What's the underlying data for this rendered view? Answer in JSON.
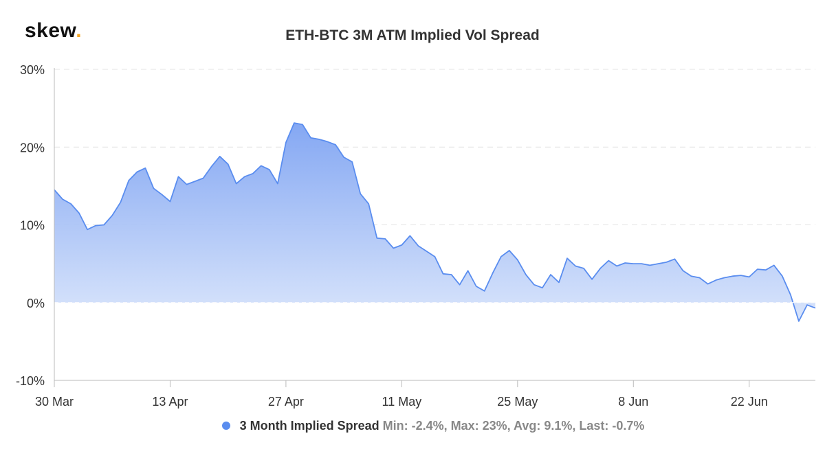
{
  "brand": {
    "name": "skew",
    "dot": "."
  },
  "chart_data": {
    "type": "area",
    "title": "ETH-BTC 3M ATM Implied Vol Spread",
    "xlabel": "",
    "ylabel": "",
    "x_ticks": [
      "30 Mar",
      "13 Apr",
      "27 Apr",
      "11 May",
      "25 May",
      "8 Jun",
      "22 Jun"
    ],
    "y_ticks": [
      "30%",
      "20%",
      "10%",
      "0%",
      "-10%"
    ],
    "ylim": [
      -10,
      30
    ],
    "x_range": [
      "2020-03-30",
      "2020-06-30"
    ],
    "grid": "horizontal-dashed",
    "legend_position": "bottom-center",
    "series": [
      {
        "name": "3 Month Implied Spread",
        "color": "#5a8def",
        "stats": "Min: -2.4%, Max: 23%, Avg: 9.1%, Last: -0.7%",
        "x": [
          "2020-03-30",
          "2020-03-31",
          "2020-04-01",
          "2020-04-02",
          "2020-04-03",
          "2020-04-04",
          "2020-04-05",
          "2020-04-06",
          "2020-04-07",
          "2020-04-08",
          "2020-04-09",
          "2020-04-10",
          "2020-04-11",
          "2020-04-12",
          "2020-04-13",
          "2020-04-14",
          "2020-04-15",
          "2020-04-16",
          "2020-04-17",
          "2020-04-18",
          "2020-04-19",
          "2020-04-20",
          "2020-04-21",
          "2020-04-22",
          "2020-04-23",
          "2020-04-24",
          "2020-04-25",
          "2020-04-26",
          "2020-04-27",
          "2020-04-28",
          "2020-04-29",
          "2020-04-30",
          "2020-05-01",
          "2020-05-02",
          "2020-05-03",
          "2020-05-04",
          "2020-05-05",
          "2020-05-06",
          "2020-05-07",
          "2020-05-08",
          "2020-05-09",
          "2020-05-10",
          "2020-05-11",
          "2020-05-12",
          "2020-05-13",
          "2020-05-14",
          "2020-05-15",
          "2020-05-16",
          "2020-05-17",
          "2020-05-18",
          "2020-05-19",
          "2020-05-20",
          "2020-05-21",
          "2020-05-22",
          "2020-05-23",
          "2020-05-24",
          "2020-05-25",
          "2020-05-26",
          "2020-05-27",
          "2020-05-28",
          "2020-05-29",
          "2020-05-30",
          "2020-05-31",
          "2020-06-01",
          "2020-06-02",
          "2020-06-03",
          "2020-06-04",
          "2020-06-05",
          "2020-06-06",
          "2020-06-07",
          "2020-06-08",
          "2020-06-09",
          "2020-06-10",
          "2020-06-11",
          "2020-06-12",
          "2020-06-13",
          "2020-06-14",
          "2020-06-15",
          "2020-06-16",
          "2020-06-17",
          "2020-06-18",
          "2020-06-19",
          "2020-06-20",
          "2020-06-21",
          "2020-06-22",
          "2020-06-23",
          "2020-06-24",
          "2020-06-25",
          "2020-06-26",
          "2020-06-27",
          "2020-06-28",
          "2020-06-29",
          "2020-06-30"
        ],
        "values": [
          14.5,
          13.3,
          12.7,
          11.5,
          9.4,
          9.9,
          10.0,
          11.2,
          12.9,
          15.7,
          16.8,
          17.3,
          14.7,
          13.9,
          13.0,
          16.2,
          15.2,
          15.6,
          16.0,
          17.5,
          18.8,
          17.8,
          15.3,
          16.2,
          16.6,
          17.6,
          17.1,
          15.3,
          20.6,
          23.1,
          22.9,
          21.2,
          21.0,
          20.7,
          20.3,
          18.7,
          18.1,
          14.0,
          12.7,
          8.3,
          8.2,
          7.0,
          7.4,
          8.6,
          7.3,
          6.6,
          5.9,
          3.7,
          3.6,
          2.3,
          4.1,
          2.1,
          1.5,
          3.8,
          5.9,
          6.7,
          5.5,
          3.6,
          2.3,
          1.9,
          3.6,
          2.6,
          5.7,
          4.7,
          4.4,
          3.0,
          4.4,
          5.4,
          4.7,
          5.1,
          5.0,
          5.0,
          4.8,
          5.0,
          5.2,
          5.6,
          4.1,
          3.4,
          3.2,
          2.4,
          2.9,
          3.2,
          3.4,
          3.5,
          3.3,
          4.3,
          4.2,
          4.8,
          3.4,
          1.0,
          -2.4,
          -0.3,
          -0.7
        ]
      }
    ]
  }
}
